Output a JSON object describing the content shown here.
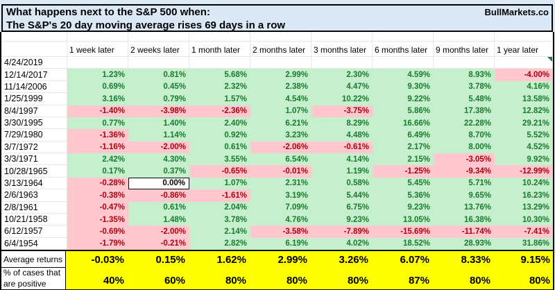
{
  "brand": "BullMarkets.co",
  "title": {
    "line1": "What happens next to the S&P 500 when:",
    "line2": "The S&P's 20 day moving average rises 69 days in a row"
  },
  "columns": [
    "1 week later",
    "2 weeks later",
    "1 month later",
    "2 months later",
    "3 months later",
    "6 months later",
    "9 months later",
    "1 year later"
  ],
  "rows": [
    {
      "date": "4/24/2019",
      "values": [
        "",
        "",
        "",
        "",
        "",
        "",
        "",
        ""
      ]
    },
    {
      "date": "12/14/2017",
      "values": [
        "1.23%",
        "0.81%",
        "5.68%",
        "2.99%",
        "2.30%",
        "4.59%",
        "8.93%",
        "-4.00%"
      ]
    },
    {
      "date": "11/14/2006",
      "values": [
        "0.69%",
        "0.45%",
        "2.32%",
        "2.38%",
        "4.47%",
        "9.30%",
        "3.78%",
        "4.16%"
      ]
    },
    {
      "date": "1/25/1999",
      "values": [
        "3.16%",
        "0.79%",
        "1.57%",
        "4.54%",
        "10.22%",
        "9.22%",
        "5.48%",
        "13.58%"
      ]
    },
    {
      "date": "8/4/1997",
      "values": [
        "-1.40%",
        "-3.98%",
        "-2.36%",
        "1.07%",
        "-3.75%",
        "5.86%",
        "17.38%",
        "12.82%"
      ]
    },
    {
      "date": "3/30/1995",
      "values": [
        "0.77%",
        "1.40%",
        "2.40%",
        "6.21%",
        "8.29%",
        "16.66%",
        "22.28%",
        "29.21%"
      ]
    },
    {
      "date": "7/29/1980",
      "values": [
        "-1.36%",
        "1.14%",
        "0.92%",
        "3.23%",
        "4.48%",
        "6.49%",
        "8.70%",
        "5.52%"
      ]
    },
    {
      "date": "3/7/1972",
      "values": [
        "-1.16%",
        "-2.00%",
        "0.61%",
        "-2.06%",
        "-0.61%",
        "2.17%",
        "8.00%",
        "4.52%"
      ]
    },
    {
      "date": "3/3/1971",
      "values": [
        "2.42%",
        "4.30%",
        "3.55%",
        "6.54%",
        "4.14%",
        "2.15%",
        "-3.05%",
        "9.92%"
      ]
    },
    {
      "date": "10/28/1965",
      "values": [
        "0.17%",
        "0.37%",
        "-0.65%",
        "-0.01%",
        "1.19%",
        "-1.25%",
        "-9.34%",
        "-12.99%"
      ]
    },
    {
      "date": "3/13/1964",
      "values": [
        "-0.28%",
        "0.00%",
        "1.07%",
        "2.31%",
        "0.58%",
        "5.45%",
        "5.71%",
        "10.24%"
      ]
    },
    {
      "date": "2/6/1963",
      "values": [
        "-0.38%",
        "-0.86%",
        "-1.61%",
        "3.19%",
        "5.44%",
        "5.36%",
        "9.65%",
        "16.23%"
      ]
    },
    {
      "date": "2/8/1961",
      "values": [
        "-0.47%",
        "0.61%",
        "2.04%",
        "7.09%",
        "6.75%",
        "9.23%",
        "13.76%",
        "13.29%"
      ]
    },
    {
      "date": "10/21/1958",
      "values": [
        "-1.35%",
        "1.48%",
        "3.78%",
        "4.76%",
        "9.23%",
        "13.05%",
        "16.38%",
        "10.30%"
      ]
    },
    {
      "date": "6/12/1957",
      "values": [
        "-0.69%",
        "-2.00%",
        "2.14%",
        "-3.58%",
        "-7.89%",
        "-15.69%",
        "-11.74%",
        "-7.41%"
      ]
    },
    {
      "date": "6/4/1954",
      "values": [
        "-1.79%",
        "-0.21%",
        "2.82%",
        "6.19%",
        "4.02%",
        "18.52%",
        "28.93%",
        "31.86%"
      ]
    }
  ],
  "summary": {
    "avg_label": "Average returns",
    "avg_values": [
      "-0.03%",
      "0.15%",
      "1.62%",
      "2.99%",
      "3.26%",
      "6.07%",
      "8.33%",
      "9.15%"
    ],
    "pct_label_line1": "% of cases that",
    "pct_label_line2": "are positive",
    "pct_values": [
      "40%",
      "60%",
      "80%",
      "80%",
      "80%",
      "87%",
      "80%",
      "80%"
    ]
  },
  "colors": {
    "title_bg": "#dbe8f6",
    "positive_bg": "#c6efce",
    "positive_text": "#1a7a2e",
    "negative_bg": "#ffc7ce",
    "negative_text": "#aa0310",
    "summary_bg": "#ffff00",
    "gridline": "#eae6e4",
    "flag_green": "#21734d",
    "border": "#000000"
  }
}
